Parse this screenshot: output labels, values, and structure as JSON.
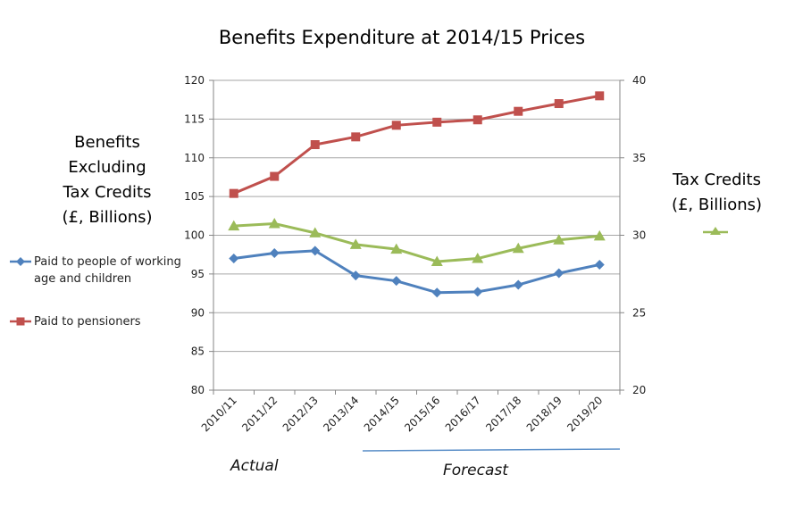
{
  "chart_data": {
    "type": "line",
    "title": "Benefits Expenditure at 2014/15 Prices",
    "xlabel": "",
    "ylabel": "Benefits Excluding Tax Credits (£, Billions)",
    "ylabel_lines": [
      "Benefits",
      "Excluding",
      "Tax Credits",
      "(£, Billions)"
    ],
    "y2label": "Tax Credits (£, Billions)",
    "y2label_lines": [
      "Tax Credits",
      "(£, Billions)"
    ],
    "categories": [
      "2010/11",
      "2011/12",
      "2012/13",
      "2013/14",
      "2014/15",
      "2015/16",
      "2016/17",
      "2017/18",
      "2018/19",
      "2019/20"
    ],
    "ylim": [
      80,
      120
    ],
    "yticks": [
      80,
      85,
      90,
      95,
      100,
      105,
      110,
      115,
      120
    ],
    "y2lim": [
      20,
      40
    ],
    "y2ticks": [
      20,
      25,
      30,
      35,
      40
    ],
    "grid": true,
    "series": [
      {
        "name": "Paid to people of working age and children",
        "axis": "left",
        "color": "#4F81BD",
        "marker": "diamond",
        "values": [
          97.0,
          97.7,
          98.0,
          94.8,
          94.1,
          92.6,
          92.7,
          93.6,
          95.1,
          96.2
        ]
      },
      {
        "name": "Paid to pensioners",
        "axis": "left",
        "color": "#C0504D",
        "marker": "square",
        "values": [
          105.4,
          107.6,
          111.7,
          112.7,
          114.2,
          114.6,
          114.9,
          116.0,
          117.0,
          118.0
        ]
      },
      {
        "name": "Tax Credits",
        "axis": "right",
        "color": "#9BBB59",
        "marker": "triangle",
        "values": [
          30.6,
          30.75,
          30.15,
          29.4,
          29.1,
          28.3,
          28.5,
          29.15,
          29.7,
          29.95
        ]
      }
    ],
    "annotations": {
      "actual": "Actual",
      "forecast": "Forecast",
      "forecast_start_category": "2014/15",
      "forecast_end_category": "2019/20"
    },
    "legend_placement": "left (series 1-2), right (series 3)"
  },
  "legend": {
    "left": [
      {
        "label": "Paid to people of working age and children",
        "color": "#4F81BD",
        "marker": "diamond"
      },
      {
        "label": "Paid to pensioners",
        "color": "#C0504D",
        "marker": "square"
      }
    ],
    "right": {
      "label": "",
      "color": "#9BBB59",
      "marker": "triangle"
    }
  },
  "colors": {
    "grid": "#A6A6A6",
    "axis": "#868686",
    "forecast_bar": "#5B8FC8"
  }
}
